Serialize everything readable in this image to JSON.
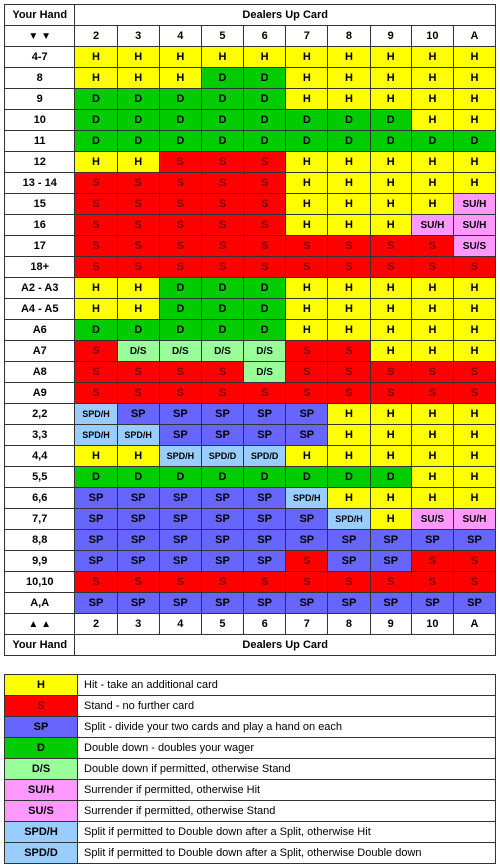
{
  "colors": {
    "H": "#ffff00",
    "S": "#ff0000",
    "SP": "#6666ff",
    "D": "#00cc00",
    "D/S": "#99ff99",
    "SU/H": "#ff99ff",
    "SU/S": "#ff99ff",
    "SPD/H": "#99ccff",
    "SPD/D": "#99ccff"
  },
  "textcolors": {
    "S": "#800000"
  },
  "headers": {
    "yourHand": "Your Hand",
    "dealers": "Dealers Up Card",
    "dealerCols": [
      "2",
      "3",
      "4",
      "5",
      "6",
      "7",
      "8",
      "9",
      "10",
      "A"
    ],
    "arrowsDown": "▼ ▼",
    "arrowsUp": "▲ ▲"
  },
  "rows": [
    {
      "label": "4-7",
      "cells": [
        "H",
        "H",
        "H",
        "H",
        "H",
        "H",
        "H",
        "H",
        "H",
        "H"
      ]
    },
    {
      "label": "8",
      "cells": [
        "H",
        "H",
        "H",
        "D",
        "D",
        "H",
        "H",
        "H",
        "H",
        "H"
      ]
    },
    {
      "label": "9",
      "cells": [
        "D",
        "D",
        "D",
        "D",
        "D",
        "H",
        "H",
        "H",
        "H",
        "H"
      ]
    },
    {
      "label": "10",
      "cells": [
        "D",
        "D",
        "D",
        "D",
        "D",
        "D",
        "D",
        "D",
        "H",
        "H"
      ]
    },
    {
      "label": "11",
      "cells": [
        "D",
        "D",
        "D",
        "D",
        "D",
        "D",
        "D",
        "D",
        "D",
        "D"
      ]
    },
    {
      "label": "12",
      "cells": [
        "H",
        "H",
        "S",
        "S",
        "S",
        "H",
        "H",
        "H",
        "H",
        "H"
      ]
    },
    {
      "label": "13 - 14",
      "cells": [
        "S",
        "S",
        "S",
        "S",
        "S",
        "H",
        "H",
        "H",
        "H",
        "H"
      ]
    },
    {
      "label": "15",
      "cells": [
        "S",
        "S",
        "S",
        "S",
        "S",
        "H",
        "H",
        "H",
        "H",
        "SU/H"
      ]
    },
    {
      "label": "16",
      "cells": [
        "S",
        "S",
        "S",
        "S",
        "S",
        "H",
        "H",
        "H",
        "SU/H",
        "SU/H"
      ]
    },
    {
      "label": "17",
      "cells": [
        "S",
        "S",
        "S",
        "S",
        "S",
        "S",
        "S",
        "S",
        "S",
        "SU/S"
      ]
    },
    {
      "label": "18+",
      "cells": [
        "S",
        "S",
        "S",
        "S",
        "S",
        "S",
        "S",
        "S",
        "S",
        "S"
      ]
    },
    {
      "label": "A2 - A3",
      "cells": [
        "H",
        "H",
        "D",
        "D",
        "D",
        "H",
        "H",
        "H",
        "H",
        "H"
      ]
    },
    {
      "label": "A4 - A5",
      "cells": [
        "H",
        "H",
        "D",
        "D",
        "D",
        "H",
        "H",
        "H",
        "H",
        "H"
      ]
    },
    {
      "label": "A6",
      "cells": [
        "D",
        "D",
        "D",
        "D",
        "D",
        "H",
        "H",
        "H",
        "H",
        "H"
      ]
    },
    {
      "label": "A7",
      "cells": [
        "S",
        "D/S",
        "D/S",
        "D/S",
        "D/S",
        "S",
        "S",
        "H",
        "H",
        "H"
      ]
    },
    {
      "label": "A8",
      "cells": [
        "S",
        "S",
        "S",
        "S",
        "D/S",
        "S",
        "S",
        "S",
        "S",
        "S"
      ]
    },
    {
      "label": "A9",
      "cells": [
        "S",
        "S",
        "S",
        "S",
        "S",
        "S",
        "S",
        "S",
        "S",
        "S"
      ]
    },
    {
      "label": "2,2",
      "cells": [
        "SPD/H",
        "SP",
        "SP",
        "SP",
        "SP",
        "SP",
        "H",
        "H",
        "H",
        "H"
      ]
    },
    {
      "label": "3,3",
      "cells": [
        "SPD/H",
        "SPD/H",
        "SP",
        "SP",
        "SP",
        "SP",
        "H",
        "H",
        "H",
        "H"
      ]
    },
    {
      "label": "4,4",
      "cells": [
        "H",
        "H",
        "SPD/H",
        "SPD/D",
        "SPD/D",
        "H",
        "H",
        "H",
        "H",
        "H"
      ]
    },
    {
      "label": "5,5",
      "cells": [
        "D",
        "D",
        "D",
        "D",
        "D",
        "D",
        "D",
        "D",
        "H",
        "H"
      ]
    },
    {
      "label": "6,6",
      "cells": [
        "SP",
        "SP",
        "SP",
        "SP",
        "SP",
        "SPD/H",
        "H",
        "H",
        "H",
        "H"
      ]
    },
    {
      "label": "7,7",
      "cells": [
        "SP",
        "SP",
        "SP",
        "SP",
        "SP",
        "SP",
        "SPD/H",
        "H",
        "SU/S",
        "SU/H"
      ]
    },
    {
      "label": "8,8",
      "cells": [
        "SP",
        "SP",
        "SP",
        "SP",
        "SP",
        "SP",
        "SP",
        "SP",
        "SP",
        "SP"
      ]
    },
    {
      "label": "9,9",
      "cells": [
        "SP",
        "SP",
        "SP",
        "SP",
        "SP",
        "S",
        "SP",
        "SP",
        "S",
        "S"
      ]
    },
    {
      "label": "10,10",
      "cells": [
        "S",
        "S",
        "S",
        "S",
        "S",
        "S",
        "S",
        "S",
        "S",
        "S"
      ]
    },
    {
      "label": "A,A",
      "cells": [
        "SP",
        "SP",
        "SP",
        "SP",
        "SP",
        "SP",
        "SP",
        "SP",
        "SP",
        "SP"
      ]
    }
  ],
  "legend": [
    {
      "code": "H",
      "desc": "Hit - take an additional card"
    },
    {
      "code": "S",
      "desc": "Stand - no further card"
    },
    {
      "code": "SP",
      "desc": "Split - divide your two cards and play a hand on each"
    },
    {
      "code": "D",
      "desc": "Double down - doubles your wager"
    },
    {
      "code": "D/S",
      "desc": "Double down if permitted, otherwise Stand"
    },
    {
      "code": "SU/H",
      "desc": "Surrender if permitted, otherwise Hit"
    },
    {
      "code": "SU/S",
      "desc": "Surrender if permitted, otherwise Stand"
    },
    {
      "code": "SPD/H",
      "desc": "Split if permitted to Double down after a Split, otherwise Hit"
    },
    {
      "code": "SPD/D",
      "desc": "Split if permitted to Double down after a Split, otherwise Double down"
    }
  ]
}
